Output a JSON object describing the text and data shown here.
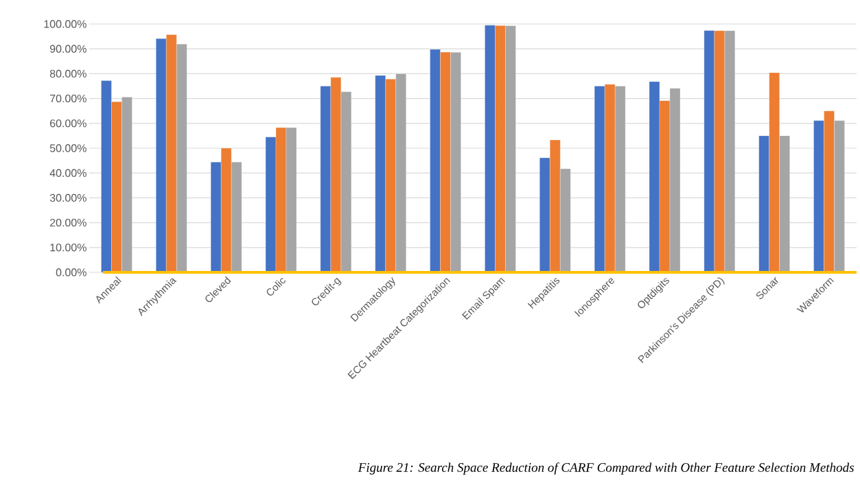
{
  "chart_data": {
    "type": "bar",
    "categories": [
      "Anneal",
      "Arrhythmia",
      "Cleved",
      "Colic",
      "Credit-g",
      "Dermatology",
      "ECG Heartbeat Categorization",
      "Email Spam",
      "Hepatitis",
      "Ionosphere",
      "Optdigits",
      "Parkinson's Disease (PD)",
      "Sonar",
      "Waveform"
    ],
    "series": [
      {
        "color": "#4472c4",
        "values": [
          77.2,
          94.1,
          44.4,
          54.5,
          75.0,
          79.3,
          89.8,
          99.5,
          46.1,
          75.0,
          76.8,
          97.4,
          55.0,
          61.1
        ]
      },
      {
        "color": "#ed7d31",
        "values": [
          68.7,
          95.7,
          50.0,
          58.3,
          78.5,
          77.8,
          88.7,
          99.4,
          53.3,
          75.7,
          69.1,
          97.3,
          80.4,
          65.0
        ]
      },
      {
        "color": "#a5a5a5",
        "values": [
          70.6,
          91.9,
          44.4,
          58.3,
          72.7,
          80.0,
          88.6,
          99.3,
          41.7,
          75.0,
          74.1,
          97.3,
          55.0,
          61.1
        ]
      }
    ],
    "ylim": [
      0,
      100
    ],
    "yticks": [
      {
        "value": 0,
        "label": "0.00%"
      },
      {
        "value": 10,
        "label": "10.00%"
      },
      {
        "value": 20,
        "label": "20.00%"
      },
      {
        "value": 30,
        "label": "30.00%"
      },
      {
        "value": 40,
        "label": "40.00%"
      },
      {
        "value": 50,
        "label": "50.00%"
      },
      {
        "value": 60,
        "label": "60.00%"
      },
      {
        "value": 70,
        "label": "70.00%"
      },
      {
        "value": 80,
        "label": "80.00%"
      },
      {
        "value": 90,
        "label": "90.00%"
      },
      {
        "value": 100,
        "label": "100.00%"
      }
    ],
    "grid": "y",
    "annotations": [
      "Figure 21: Search Space Reduction of CARF Compared with Other Feature Selection Methods"
    ]
  }
}
